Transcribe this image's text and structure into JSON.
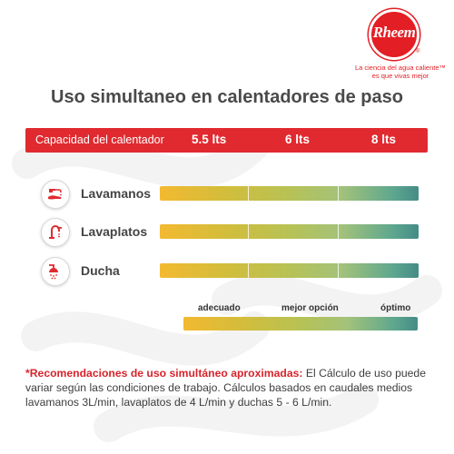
{
  "brand": {
    "logo_text": "Rheem",
    "tagline_line1": "La ciencia del agua caliente™",
    "tagline_line2": "es que vivas mejor"
  },
  "title": "Uso simultaneo en calentadores de paso",
  "capacity_header": {
    "label": "Capacidad del calentador",
    "values": [
      "5.5 lts",
      "6 lts",
      "8 lts"
    ]
  },
  "rows": [
    {
      "label": "Lavamanos",
      "icon": "faucet-hand-icon"
    },
    {
      "label": "Lavaplatos",
      "icon": "kitchen-faucet-icon"
    },
    {
      "label": "Ducha",
      "icon": "shower-icon"
    }
  ],
  "legend": {
    "low": "adecuado",
    "mid": "mejor opción",
    "high": "óptimo"
  },
  "note": {
    "heading": "*Recomendaciones de uso simultáneo aproximadas:",
    "body": " El Cálculo de uso puede variar según las condiciones de trabajo. Cálculos basados en caudales medios lavamanos 3L/min, lavaplatos de 4 L/min y duchas 5 - 6 L/min."
  },
  "colors": {
    "accent_red": "#e02a30",
    "gradient_start": "#f3b931",
    "gradient_mid": "#b7c255",
    "gradient_end": "#458b87"
  }
}
